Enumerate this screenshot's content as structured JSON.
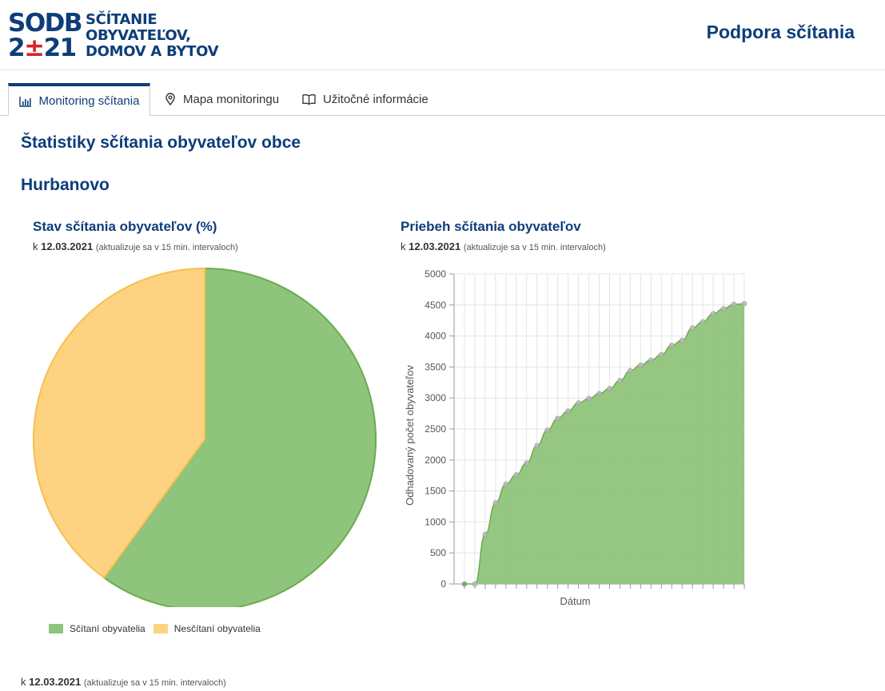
{
  "logo": {
    "mark_line1_a": "SODB",
    "mark_line2_a": "2",
    "mark_line2_plus": "±",
    "mark_line2_b": "21",
    "text": [
      "SČÍTANIE",
      "OBYVATEĽOV,",
      "DOMOV A BYTOV"
    ]
  },
  "header": {
    "title": "Podpora sčítania"
  },
  "tabs": [
    {
      "label": "Monitoring sčítania",
      "icon": "bar-chart-icon",
      "active": true
    },
    {
      "label": "Mapa monitoringu",
      "icon": "map-pin-icon",
      "active": false
    },
    {
      "label": "Užitočné informácie",
      "icon": "book-icon",
      "active": false
    }
  ],
  "page": {
    "title": "Štatistiky sčítania obyvateľov obce",
    "municipality": "Hurbanovo"
  },
  "as_of": {
    "prefix": "k",
    "date": "12.03.2021",
    "note": "(aktualizuje sa v 15 min. intervaloch)"
  },
  "colors": {
    "brand": "#0d3d7a",
    "red": "#d6242d",
    "green": "#8fc47c",
    "green_border": "#6aac4e",
    "yellow": "#fdd382",
    "yellow_border": "#f5c04f"
  },
  "chart_data": [
    {
      "type": "pie",
      "title": "Stav sčítania obyvateľov (%)",
      "labels": [
        "Sčítaní obyvatelia",
        "Nesčítaní obyvatelia"
      ],
      "values": [
        60,
        40
      ],
      "colors": [
        "#8fc47c",
        "#fdd382"
      ],
      "legend": "bottom-left"
    },
    {
      "type": "area",
      "title": "Priebeh sčítania obyvateľov",
      "xlabel": "Dátum",
      "ylabel": "Odhadovaný počet obyvateľov",
      "ylim": [
        0,
        5000
      ],
      "yticks": [
        0,
        500,
        1000,
        1500,
        2000,
        2500,
        3000,
        3500,
        4000,
        4500,
        5000
      ],
      "grid": true,
      "values": [
        0,
        0,
        800,
        1310,
        1610,
        1760,
        1950,
        2230,
        2480,
        2670,
        2790,
        2920,
        2990,
        3070,
        3150,
        3280,
        3440,
        3530,
        3610,
        3700,
        3850,
        3930,
        4130,
        4230,
        4360,
        4440,
        4510,
        4520
      ]
    }
  ]
}
